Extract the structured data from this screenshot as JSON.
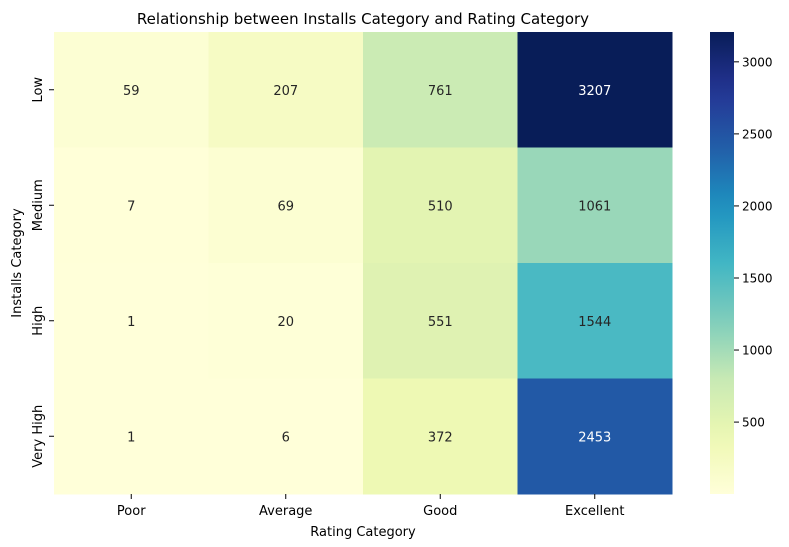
{
  "chart_data": {
    "type": "heatmap",
    "title": "Relationship between Installs Category and Rating Category",
    "xlabel": "Rating Category",
    "ylabel": "Installs Category",
    "x_categories": [
      "Poor",
      "Average",
      "Good",
      "Excellent"
    ],
    "y_categories": [
      "Low",
      "Medium",
      "High",
      "Very High"
    ],
    "values": [
      [
        59,
        207,
        761,
        3207
      ],
      [
        7,
        69,
        510,
        1061
      ],
      [
        1,
        20,
        551,
        1544
      ],
      [
        1,
        6,
        372,
        2453
      ]
    ],
    "colorscale": "YlGnBu",
    "color_range": [
      1,
      3207
    ],
    "colorbar_ticks": [
      500,
      1000,
      1500,
      2000,
      2500,
      3000
    ]
  }
}
